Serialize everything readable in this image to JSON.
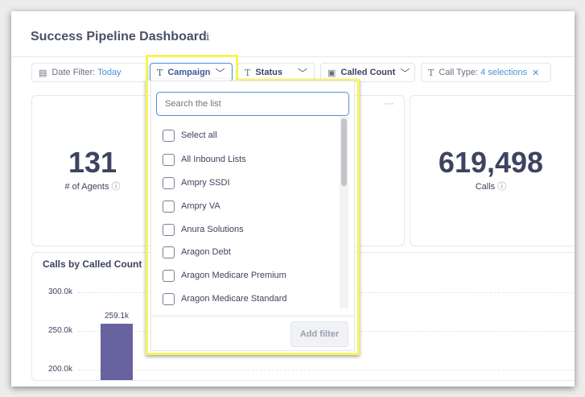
{
  "header": {
    "title": "Success Pipeline Dashboard",
    "info_icon": "info-icon"
  },
  "filters": {
    "date": {
      "label": "Date Filter:",
      "value": "Today"
    },
    "campaign": {
      "label": "Campaign"
    },
    "status": {
      "label": "Status"
    },
    "called_count": {
      "label": "Called Count"
    },
    "call_type": {
      "label": "Call Type:",
      "value": "4 selections"
    }
  },
  "cards": {
    "agents": {
      "value": "131",
      "label": "# of Agents"
    },
    "middle": {
      "menu": "···"
    },
    "calls": {
      "value": "619,498",
      "label": "Calls"
    }
  },
  "dropdown": {
    "search_placeholder": "Search the list",
    "items": [
      "Select all",
      "All Inbound Lists",
      "Ampry SSDI",
      "Ampry VA",
      "Anura Solutions",
      "Aragon Debt",
      "Aragon Medicare Premium",
      "Aragon Medicare Standard"
    ],
    "add_filter": "Add filter"
  },
  "chart_data": {
    "type": "bar",
    "title": "Calls by Called Count",
    "yticks": [
      "300.0k",
      "250.0k",
      "200.0k"
    ],
    "ytick_values": [
      300000,
      250000,
      200000
    ],
    "values": [
      259100
    ],
    "data_labels": [
      "259.1k"
    ],
    "color": "#6762a0"
  },
  "colors": {
    "accent": "#4a90d9",
    "highlight": "#f4f55a",
    "bar": "#6762a0"
  }
}
